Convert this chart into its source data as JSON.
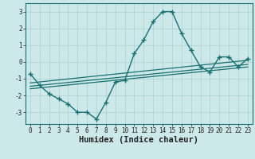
{
  "xlabel": "Humidex (Indice chaleur)",
  "x_data": [
    0,
    1,
    2,
    3,
    4,
    5,
    6,
    7,
    8,
    9,
    10,
    11,
    12,
    13,
    14,
    15,
    16,
    17,
    18,
    19,
    20,
    21,
    22,
    23
  ],
  "y_data": [
    -0.7,
    -1.4,
    -1.9,
    -2.2,
    -2.5,
    -3.0,
    -3.0,
    -3.4,
    -2.4,
    -1.2,
    -1.1,
    0.5,
    1.3,
    2.4,
    3.0,
    3.0,
    1.7,
    0.7,
    -0.3,
    -0.6,
    0.3,
    0.3,
    -0.3,
    0.2
  ],
  "reg_line1_x": [
    0,
    23
  ],
  "reg_line1_y": [
    -1.25,
    0.1
  ],
  "reg_line2_x": [
    0,
    23
  ],
  "reg_line2_y": [
    -1.45,
    -0.15
  ],
  "reg_line3_x": [
    0,
    23
  ],
  "reg_line3_y": [
    -1.6,
    -0.3
  ],
  "xlim": [
    -0.5,
    23.5
  ],
  "ylim": [
    -3.7,
    3.5
  ],
  "yticks": [
    -3,
    -2,
    -1,
    0,
    1,
    2,
    3
  ],
  "xticks": [
    0,
    1,
    2,
    3,
    4,
    5,
    6,
    7,
    8,
    9,
    10,
    11,
    12,
    13,
    14,
    15,
    16,
    17,
    18,
    19,
    20,
    21,
    22,
    23
  ],
  "line_color": "#1a7070",
  "bg_color": "#cce8e8",
  "grid_color": "#aad0d0",
  "text_color": "#222222",
  "marker": "+",
  "xlabel_fontsize": 7.5,
  "tick_fontsize": 5.5,
  "linewidth": 1.0,
  "markersize": 4
}
